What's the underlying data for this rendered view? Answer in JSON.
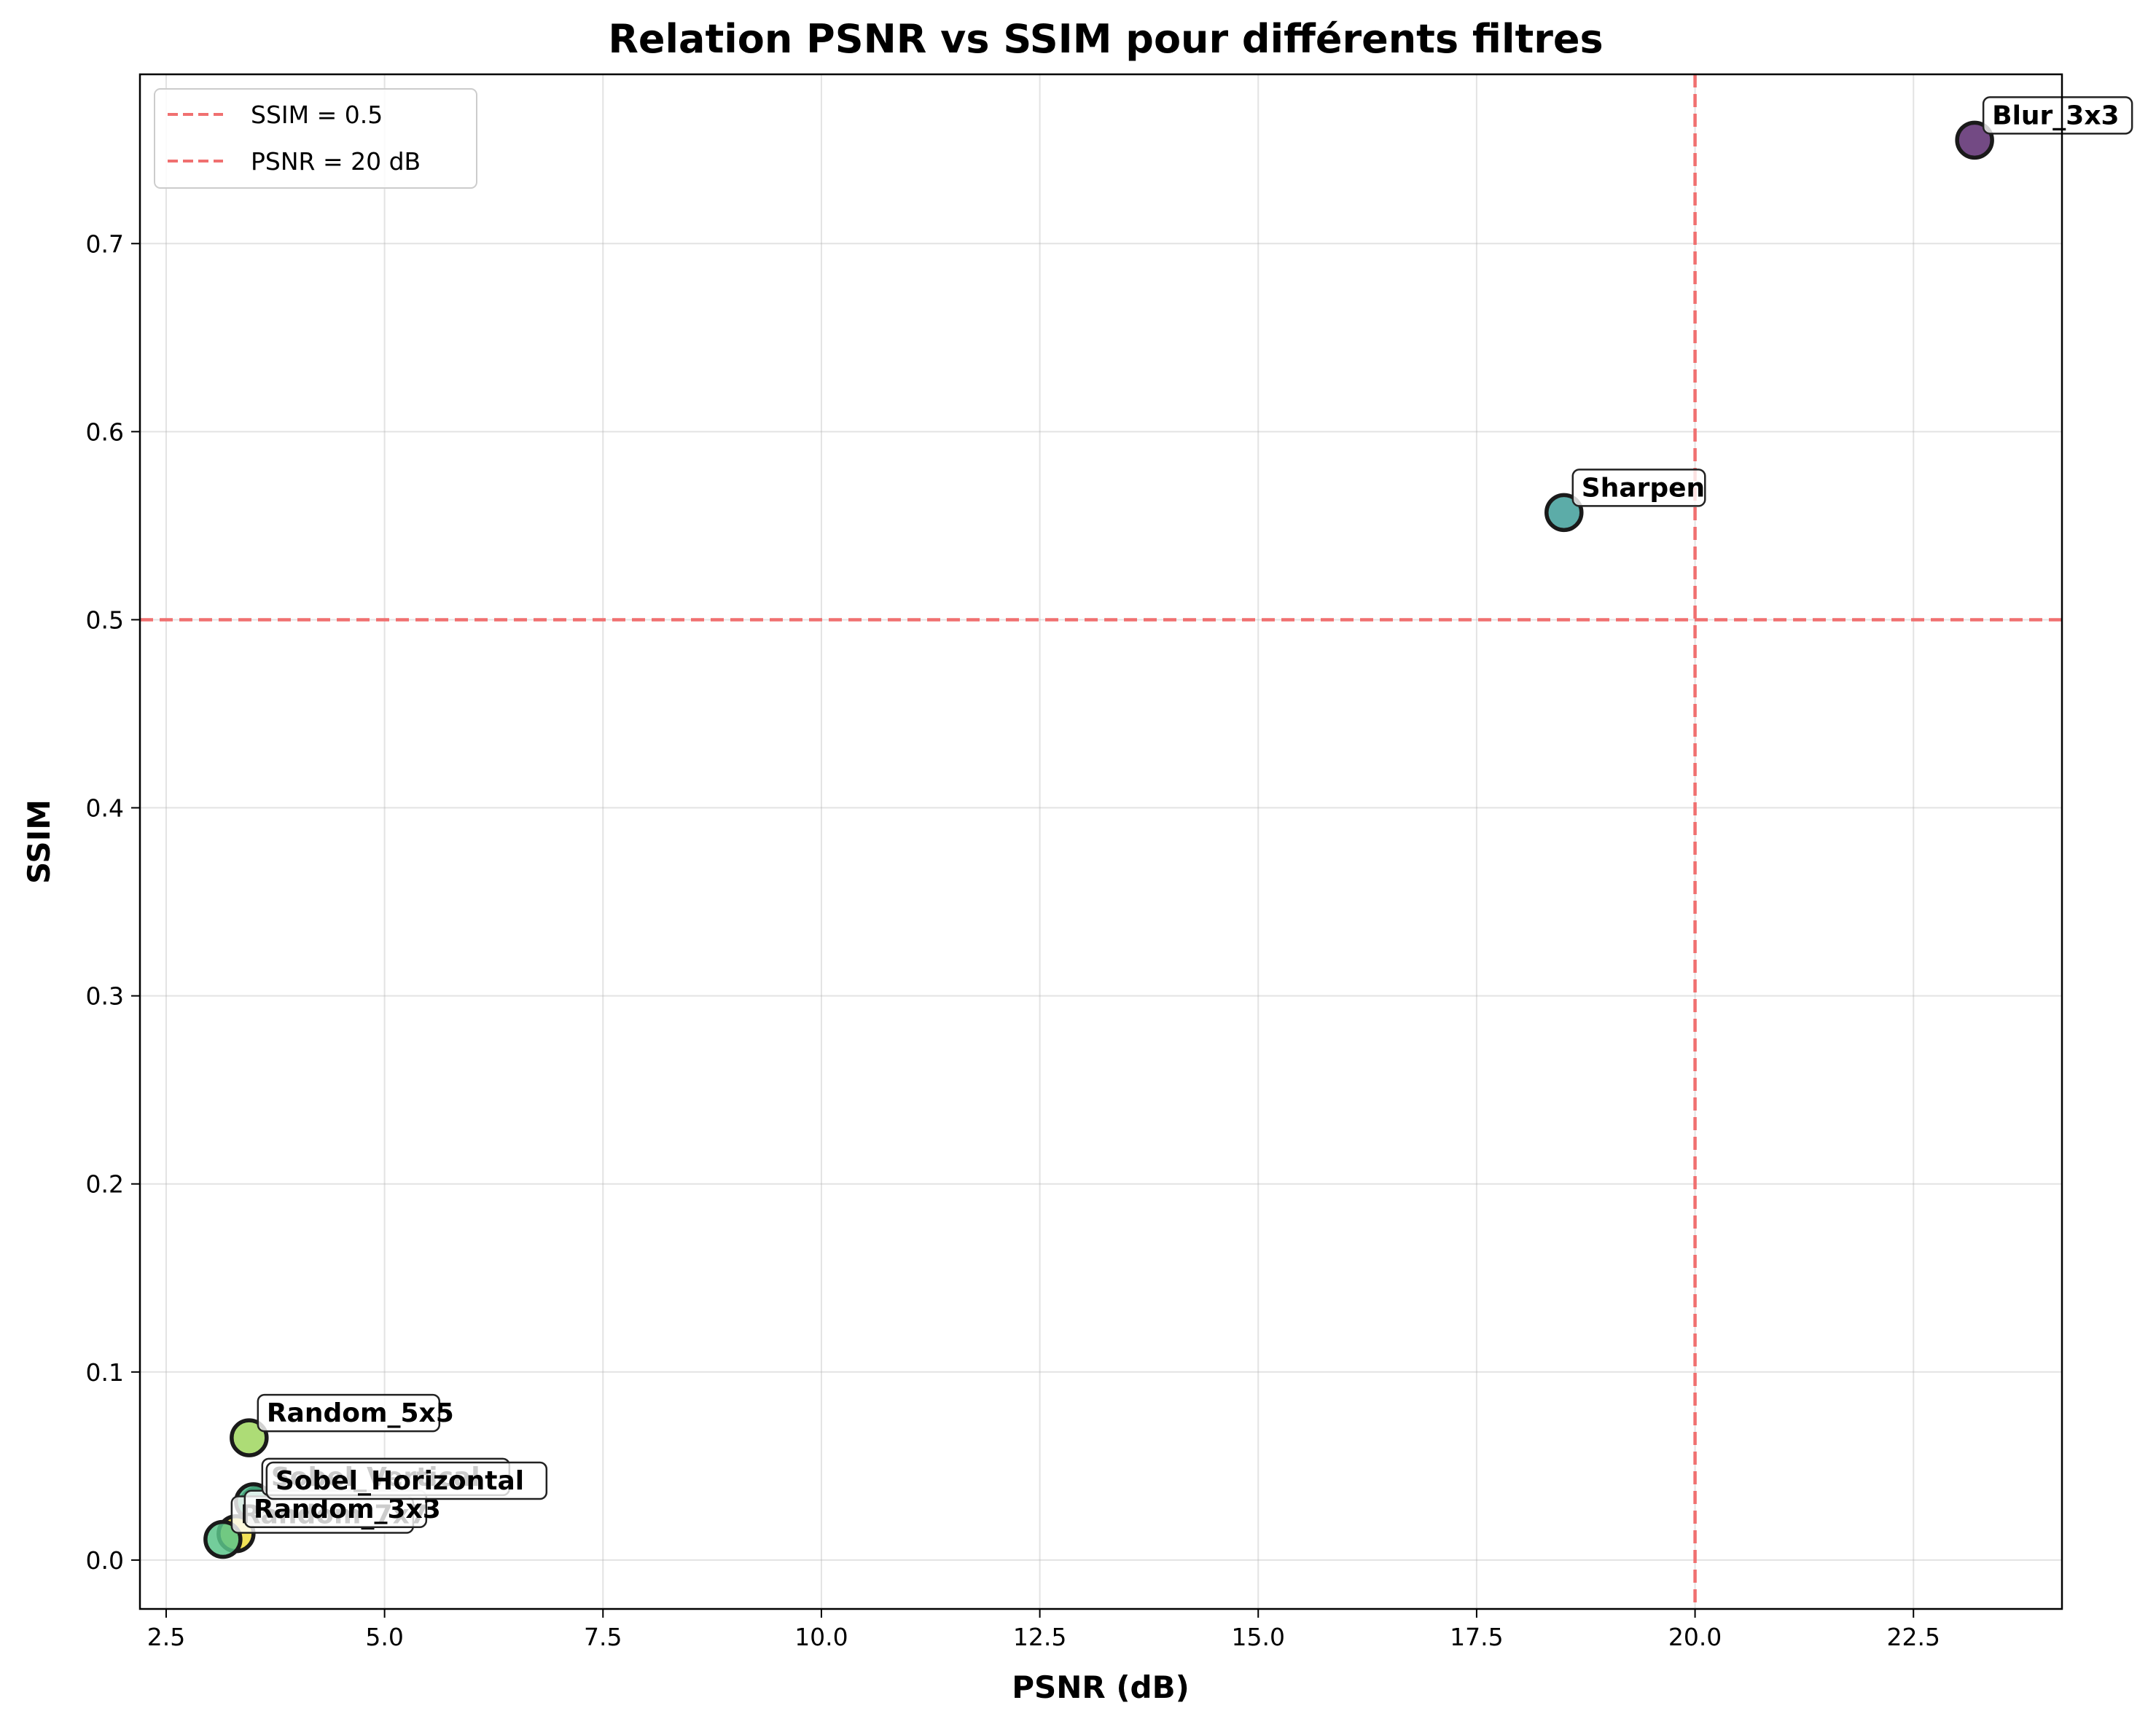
{
  "chart_data": {
    "type": "scatter",
    "title": "Relation PSNR vs SSIM pour différents filtres",
    "xlabel": "PSNR (dB)",
    "ylabel": "SSIM",
    "xlim": [
      2.2,
      24.2
    ],
    "ylim": [
      -0.026,
      0.79
    ],
    "xticks": [
      2.5,
      5.0,
      7.5,
      10.0,
      12.5,
      15.0,
      17.5,
      20.0,
      22.5
    ],
    "xtick_labels": [
      "2.5",
      "5.0",
      "7.5",
      "10.0",
      "12.5",
      "15.0",
      "17.5",
      "20.0",
      "22.5"
    ],
    "yticks": [
      0.0,
      0.1,
      0.2,
      0.3,
      0.4,
      0.5,
      0.6,
      0.7
    ],
    "ytick_labels": [
      "0.0",
      "0.1",
      "0.2",
      "0.3",
      "0.4",
      "0.5",
      "0.6",
      "0.7"
    ],
    "grid": true,
    "legend_position": "top-left",
    "points": [
      {
        "label": "Blur_3x3",
        "x": 23.2,
        "y": 0.755,
        "color": "#5b2a6e"
      },
      {
        "label": "Sharpen",
        "x": 18.5,
        "y": 0.557,
        "color": "#3f9e99"
      },
      {
        "label": "Random_5x5",
        "x": 3.45,
        "y": 0.065,
        "color": "#9fd65e"
      },
      {
        "label": "Sobel_Horizontal",
        "x": 3.55,
        "y": 0.029,
        "color": "#2c6f8e"
      },
      {
        "label": "Sobel_Vertical",
        "x": 3.5,
        "y": 0.031,
        "color": "#4cb98a"
      },
      {
        "label": "Random_3x3",
        "x": 3.3,
        "y": 0.014,
        "color": "#f0dd3a"
      },
      {
        "label": "Random_7x7",
        "x": 3.15,
        "y": 0.011,
        "color": "#5bc48a"
      }
    ],
    "reference_lines": [
      {
        "label": "SSIM = 0.5",
        "orientation": "horizontal",
        "value": 0.5,
        "color": "#f07070"
      },
      {
        "label": "PSNR = 20 dB",
        "orientation": "vertical",
        "value": 20.0,
        "color": "#f07070"
      }
    ]
  }
}
